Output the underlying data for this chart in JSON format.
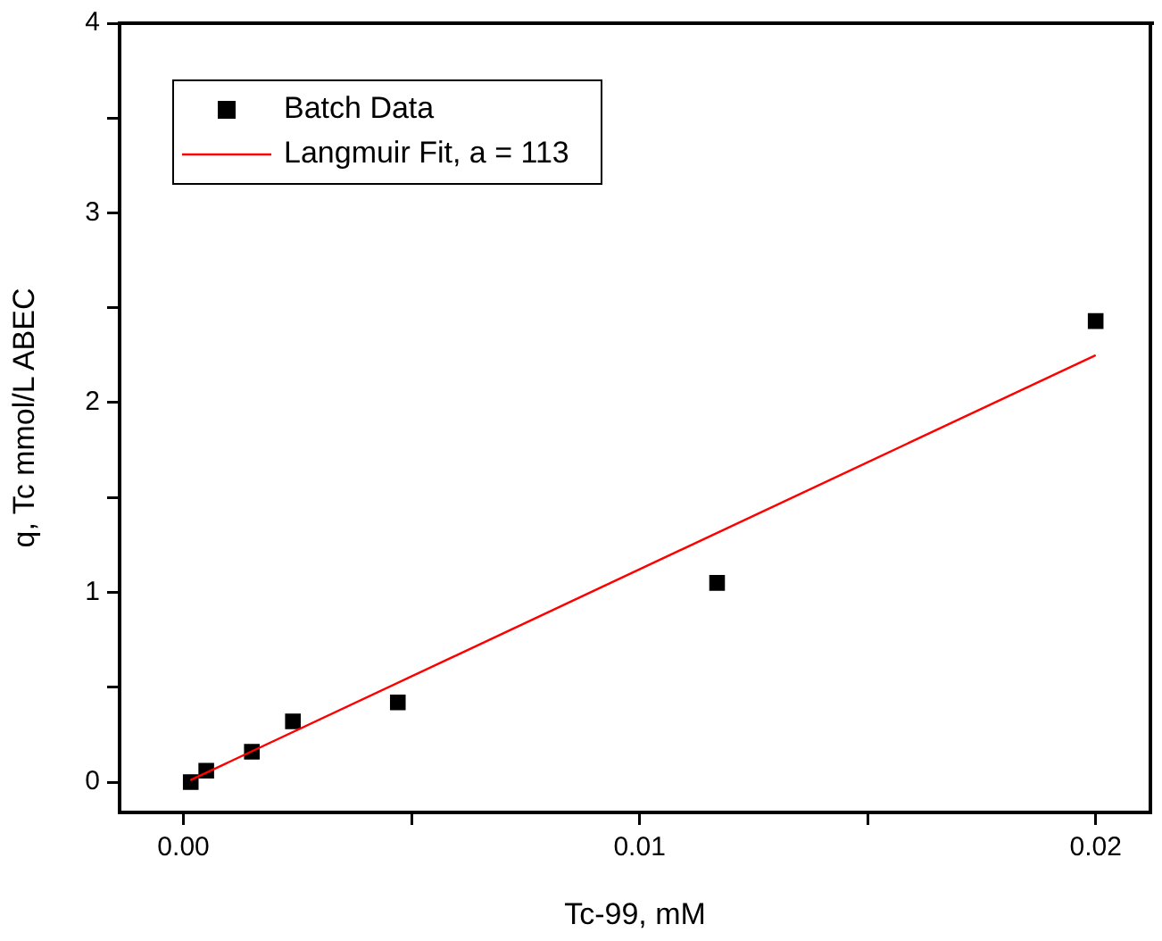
{
  "chart_data": {
    "type": "scatter",
    "xlabel": "Tc-99, mM",
    "ylabel": "q, Tc mmol/L ABEC",
    "xlim": [
      -0.0014,
      0.0212
    ],
    "ylim": [
      -0.16,
      4
    ],
    "xticks": [
      {
        "value": 0,
        "label": "0.00"
      },
      {
        "value": 0.005,
        "label": null
      },
      {
        "value": 0.01,
        "label": "0.01"
      },
      {
        "value": 0.015,
        "label": null
      },
      {
        "value": 0.02,
        "label": "0.02"
      }
    ],
    "yticks": [
      0,
      {
        "value": 0.5,
        "label": null
      },
      1,
      {
        "value": 1.5,
        "label": null
      },
      2,
      {
        "value": 2.5,
        "label": null
      },
      3,
      {
        "value": 3.5,
        "label": null
      },
      4
    ],
    "grid": false,
    "legend": "top left",
    "series": [
      {
        "name": "Batch Data",
        "type": "scatter",
        "color": "#000000",
        "marker": "square",
        "x": [
          0.00016,
          0.0005,
          0.0015,
          0.0024,
          0.0047,
          0.0117,
          0.02
        ],
        "values": [
          0,
          0.06,
          0.16,
          0.32,
          0.42,
          1.05,
          2.43
        ]
      },
      {
        "name": "Langmuir Fit, a = 113",
        "type": "line",
        "color": "#ff0000",
        "marker": "none",
        "line_style": "solid",
        "x": [
          0.00015,
          0.02
        ],
        "values": [
          0.01,
          2.25
        ]
      }
    ]
  }
}
